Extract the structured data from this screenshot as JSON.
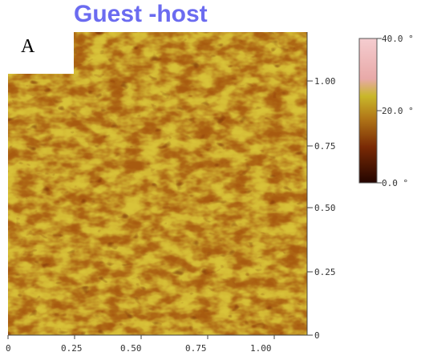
{
  "title": "Guest -host",
  "panel_label": "A",
  "image": {
    "description_colormap": [
      "#1b0600",
      "#5a1a00",
      "#9a4a06",
      "#c88f15",
      "#d7c02a",
      "#e0d070",
      "#f0b4b0"
    ],
    "x_ticks": [
      "0",
      "0.25",
      "0.50",
      "0.75",
      "1.00"
    ],
    "y_ticks": [
      "0",
      "0.25",
      "0.50",
      "0.75",
      "1.00"
    ]
  },
  "colorbar": {
    "ticks": [
      "40.0 °",
      "20.0 °",
      "0.0 °"
    ],
    "colors": [
      "#f3c6c8",
      "#e9a5a8",
      "#c9b62b",
      "#b07518",
      "#7a2a05",
      "#2a0600"
    ]
  }
}
